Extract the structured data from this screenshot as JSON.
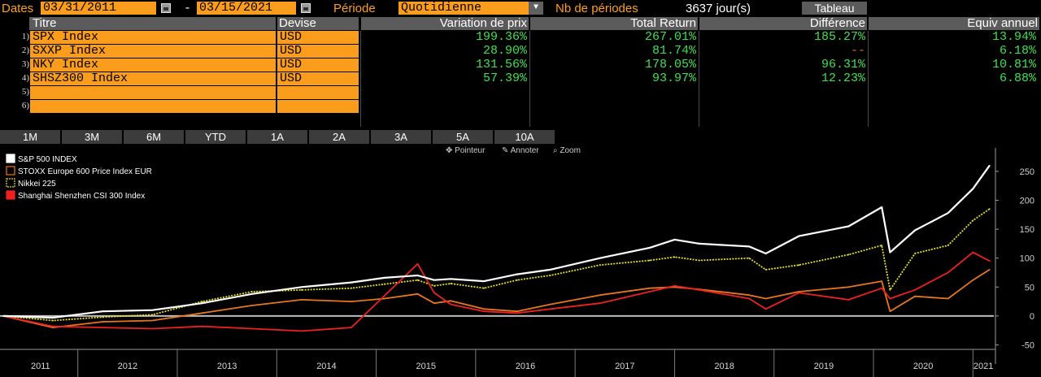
{
  "header": {
    "dates_label": "Dates",
    "start_date": "03/31/2011",
    "dash": "-",
    "end_date": "03/15/2021",
    "period_label": "Période",
    "period_value": "Quotidienne",
    "nb_label": "Nb de périodes",
    "nb_value": "3637 jour(s)",
    "tableau_button": "Tableau"
  },
  "table": {
    "columns": [
      "Titre",
      "Devise",
      "Variation de prix",
      "Total Return",
      "Différence",
      "Equiv annuel"
    ],
    "rows": [
      {
        "num": "1)",
        "titre": "SPX Index",
        "devise": "USD",
        "variation": "199.36%",
        "total": "267.01%",
        "difference": "185.27%",
        "equiv": "13.94%"
      },
      {
        "num": "2)",
        "titre": "SXXP Index",
        "devise": "USD",
        "variation": "28.90%",
        "total": "81.74%",
        "difference": "--",
        "equiv": "6.18%"
      },
      {
        "num": "3)",
        "titre": "NKY Index",
        "devise": "USD",
        "variation": "131.56%",
        "total": "178.05%",
        "difference": "96.31%",
        "equiv": "10.81%"
      },
      {
        "num": "4)",
        "titre": "SHSZ300 Index",
        "devise": "USD",
        "variation": "57.39%",
        "total": "93.97%",
        "difference": "12.23%",
        "equiv": "6.88%"
      },
      {
        "num": "5)",
        "titre": "",
        "devise": "",
        "variation": "",
        "total": "",
        "difference": "",
        "equiv": ""
      },
      {
        "num": "6)",
        "titre": "",
        "devise": "",
        "variation": "",
        "total": "",
        "difference": "",
        "equiv": ""
      }
    ]
  },
  "periods": [
    "1M",
    "3M",
    "6M",
    "YTD",
    "1A",
    "2A",
    "3A",
    "5A",
    "10A"
  ],
  "toolbar": {
    "pointer": "Pointeur",
    "annotate": "Annoter",
    "zoom": "Zoom"
  },
  "colors": {
    "orange_field": "#fb9d1c",
    "label_orange": "#ff9f1c",
    "green_value": "#3ee04f",
    "spx": "#ffffff",
    "sxxp": "#e8761e",
    "nky": "#e6e020",
    "shsz": "#ee2020"
  },
  "chart_data": {
    "type": "line",
    "legend_placement": "top-left",
    "x": [
      "2011-04",
      "2011-10",
      "2012-04",
      "2012-10",
      "2013-04",
      "2013-10",
      "2014-04",
      "2014-10",
      "2015-02",
      "2015-06",
      "2015-08",
      "2015-10",
      "2016-02",
      "2016-06",
      "2016-10",
      "2017-04",
      "2017-10",
      "2018-01",
      "2018-04",
      "2018-10",
      "2018-12",
      "2019-04",
      "2019-10",
      "2020-02",
      "2020-03",
      "2020-06",
      "2020-10",
      "2021-01",
      "2021-03"
    ],
    "series": [
      {
        "name": "S&P 500 INDEX",
        "key": "spx",
        "values": [
          0,
          -3,
          8,
          10,
          22,
          38,
          50,
          58,
          66,
          70,
          62,
          64,
          60,
          72,
          80,
          100,
          118,
          132,
          125,
          120,
          108,
          138,
          155,
          188,
          110,
          148,
          178,
          220,
          260
        ]
      },
      {
        "name": "STOXX Europe 600 Price Index EUR",
        "key": "sxxp",
        "values": [
          0,
          -20,
          -10,
          -8,
          5,
          18,
          28,
          25,
          30,
          38,
          22,
          26,
          12,
          8,
          20,
          36,
          48,
          50,
          46,
          36,
          30,
          42,
          50,
          60,
          8,
          34,
          30,
          62,
          80
        ]
      },
      {
        "name": "Nikkei 225",
        "key": "nky",
        "values": [
          0,
          -8,
          -2,
          2,
          25,
          42,
          45,
          48,
          55,
          62,
          52,
          56,
          48,
          62,
          70,
          88,
          96,
          102,
          96,
          100,
          80,
          88,
          106,
          122,
          45,
          108,
          122,
          165,
          185
        ]
      },
      {
        "name": "Shanghai Shenzhen CSI 300 Index",
        "key": "shsz",
        "values": [
          0,
          -18,
          -20,
          -22,
          -18,
          -22,
          -26,
          -20,
          35,
          90,
          40,
          20,
          8,
          5,
          12,
          22,
          42,
          52,
          45,
          30,
          12,
          40,
          28,
          48,
          30,
          45,
          75,
          110,
          95
        ]
      }
    ],
    "x_tick_labels": [
      "2011",
      "2012",
      "2013",
      "2014",
      "2015",
      "2016",
      "2017",
      "2018",
      "2019",
      "2020",
      "2021"
    ],
    "y_ticks": [
      -50,
      0,
      50,
      100,
      150,
      200,
      250
    ],
    "ylim": [
      -55,
      285
    ],
    "grid": false
  }
}
